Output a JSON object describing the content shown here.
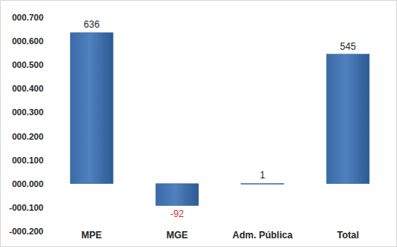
{
  "chart_data": {
    "type": "bar",
    "categories": [
      "MPE",
      "MGE",
      "Adm. Pública",
      "Total"
    ],
    "values": [
      636,
      -92,
      1,
      545
    ],
    "color": "#4f81bd",
    "ylim": [
      -200,
      700
    ],
    "yticks": [
      {
        "value": -200,
        "label": "-000.200"
      },
      {
        "value": -100,
        "label": "-000.100"
      },
      {
        "value": 0,
        "label": "000.000"
      },
      {
        "value": 100,
        "label": "000.100"
      },
      {
        "value": 200,
        "label": "000.200"
      },
      {
        "value": 300,
        "label": "000.300"
      },
      {
        "value": 400,
        "label": "000.400"
      },
      {
        "value": 500,
        "label": "000.500"
      },
      {
        "value": 600,
        "label": "000.600"
      },
      {
        "value": 700,
        "label": "000.700"
      }
    ],
    "grid": false,
    "data_labels": true
  }
}
